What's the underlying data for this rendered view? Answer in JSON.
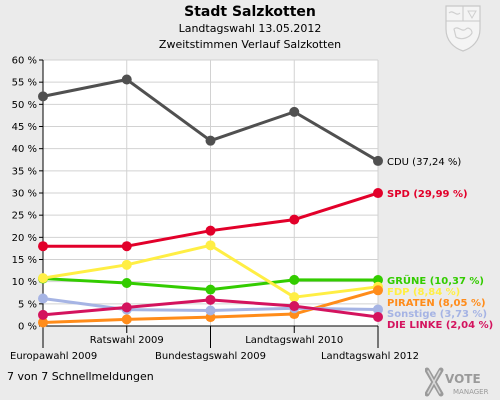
{
  "header": {
    "title": "Stadt Salzkotten",
    "subtitle": "Landtagswahl 13.05.2012",
    "subtitle2": "Zweitstimmen Verlauf Salzkotten"
  },
  "footer": {
    "text": "7 von 7 Schnellmeldungen"
  },
  "logo": {
    "icon": "vote-manager-logo",
    "text": "VOTE",
    "subtext": "MANAGER"
  },
  "crest": {
    "icon": "nrw-crest"
  },
  "chart_data": {
    "type": "line",
    "categories": [
      "Europawahl 2009",
      "Ratswahl 2009",
      "Bundestagswahl 2009",
      "Landtagswahl 2010",
      "Landtagswahl 2012"
    ],
    "y_ticks": [
      "0 %",
      "5 %",
      "10 %",
      "15 %",
      "20 %",
      "25 %",
      "30 %",
      "35 %",
      "40 %",
      "45 %",
      "50 %",
      "55 %",
      "60 %"
    ],
    "ylim": [
      0,
      60
    ],
    "grid": true,
    "series": [
      {
        "name": "CDU",
        "end_label": "CDU (37,24 %)",
        "color": "#505050",
        "label_color": "#000000",
        "values": [
          51.8,
          55.6,
          41.8,
          48.3,
          37.24
        ]
      },
      {
        "name": "SPD",
        "end_label": "SPD (29,99 %)",
        "color": "#e2002a",
        "label_color": "#e2002a",
        "values": [
          18.0,
          18.0,
          21.5,
          24.0,
          29.99
        ]
      },
      {
        "name": "GRÜNE",
        "end_label": "GRÜNE (10,37 %)",
        "color": "#33cc00",
        "label_color": "#33cc00",
        "values": [
          10.7,
          9.7,
          8.2,
          10.4,
          10.37
        ]
      },
      {
        "name": "FDP",
        "end_label": "FDP (8,84 %)",
        "color": "#ffee44",
        "label_color": "#ffee44",
        "values": [
          10.8,
          13.8,
          18.2,
          6.5,
          8.84
        ]
      },
      {
        "name": "PIRATEN",
        "end_label": "PIRATEN (8,05 %)",
        "color": "#ff8c1a",
        "label_color": "#ff8c1a",
        "values": [
          0.8,
          1.5,
          2.0,
          2.7,
          8.05
        ]
      },
      {
        "name": "Sonstige",
        "end_label": "Sonstige (3,73 %)",
        "color": "#a6b4e4",
        "label_color": "#a6b4e4",
        "values": [
          6.2,
          3.7,
          3.5,
          4.0,
          3.73
        ]
      },
      {
        "name": "DIE LINKE",
        "end_label": "DIE LINKE (2,04 %)",
        "color": "#d4135e",
        "label_color": "#d4135e",
        "values": [
          2.5,
          4.2,
          5.9,
          4.5,
          2.04
        ]
      }
    ]
  }
}
